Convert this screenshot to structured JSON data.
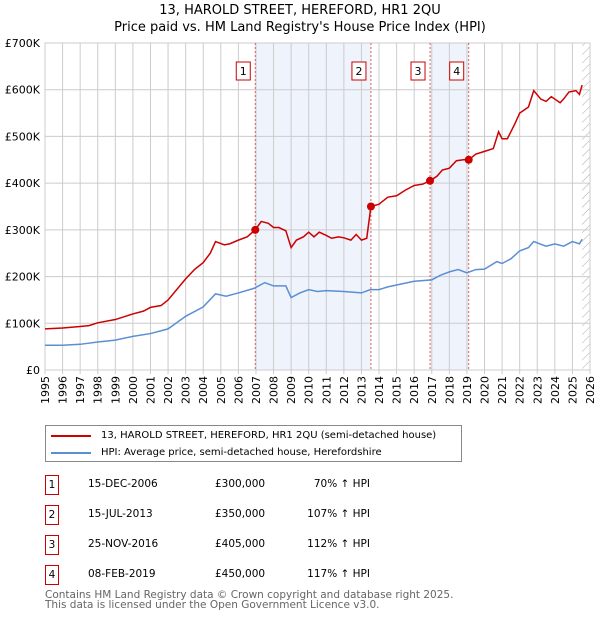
{
  "chart_data": {
    "type": "line",
    "title": "13, HAROLD STREET, HEREFORD, HR1 2QU",
    "subtitle": "Price paid vs. HM Land Registry's House Price Index (HPI)",
    "xlim": [
      1995,
      2026
    ],
    "ylim": [
      0,
      700000
    ],
    "x_ticks": [
      "1995",
      "1996",
      "1997",
      "1998",
      "1999",
      "2000",
      "2001",
      "2002",
      "2003",
      "2004",
      "2005",
      "2006",
      "2007",
      "2008",
      "2009",
      "2010",
      "2011",
      "2012",
      "2013",
      "2014",
      "2015",
      "2016",
      "2017",
      "2018",
      "2019",
      "2020",
      "2021",
      "2022",
      "2023",
      "2024",
      "2025",
      "2026"
    ],
    "y_ticks": [
      {
        "v": 0,
        "label": "£0"
      },
      {
        "v": 100000,
        "label": "£100K"
      },
      {
        "v": 200000,
        "label": "£200K"
      },
      {
        "v": 300000,
        "label": "£300K"
      },
      {
        "v": 400000,
        "label": "£400K"
      },
      {
        "v": 500000,
        "label": "£500K"
      },
      {
        "v": 600000,
        "label": "£600K"
      },
      {
        "v": 700000,
        "label": "£700K"
      }
    ],
    "grid": true,
    "series": [
      {
        "name": "13, HAROLD STREET, HEREFORD, HR1 2QU (semi-detached house)",
        "color": "#cc0000",
        "x": [
          1995,
          1996,
          1997,
          1997.5,
          1998,
          1999,
          2000,
          2000.6,
          2001,
          2001.6,
          2002,
          2003,
          2003.5,
          2004,
          2004.4,
          2004.7,
          2005.2,
          2005.5,
          2006,
          2006.5,
          2006.96,
          2007.3,
          2007.7,
          2008,
          2008.3,
          2008.7,
          2009,
          2009.3,
          2009.7,
          2010,
          2010.3,
          2010.6,
          2011,
          2011.3,
          2011.7,
          2012,
          2012.4,
          2012.7,
          2013,
          2013.3,
          2013.54,
          2014,
          2014.5,
          2015,
          2015.5,
          2016,
          2016.5,
          2016.9,
          2017.3,
          2017.6,
          2018,
          2018.4,
          2018.8,
          2019.1,
          2019.5,
          2020,
          2020.5,
          2020.8,
          2021,
          2021.3,
          2021.7,
          2022,
          2022.5,
          2022.8,
          2023.2,
          2023.5,
          2023.8,
          2024,
          2024.3,
          2024.5,
          2024.8,
          2025.2,
          2025.4,
          2025.55
        ],
        "values": [
          88000,
          90000,
          93000,
          95000,
          101000,
          108000,
          120000,
          126000,
          134000,
          138000,
          150000,
          195000,
          215000,
          230000,
          250000,
          275000,
          268000,
          270000,
          278000,
          285000,
          300000,
          318000,
          314000,
          305000,
          305000,
          298000,
          262000,
          278000,
          285000,
          295000,
          285000,
          295000,
          288000,
          282000,
          285000,
          283000,
          278000,
          290000,
          278000,
          282000,
          350000,
          355000,
          370000,
          373000,
          385000,
          395000,
          398000,
          405000,
          415000,
          428000,
          432000,
          448000,
          450000,
          450000,
          462000,
          468000,
          474000,
          510000,
          495000,
          495000,
          525000,
          550000,
          563000,
          598000,
          580000,
          575000,
          585000,
          580000,
          572000,
          580000,
          595000,
          598000,
          590000,
          610000
        ]
      },
      {
        "name": "HPI: Average price, semi-detached house, Herefordshire",
        "color": "#5b8fd4",
        "x": [
          1995,
          1996,
          1997,
          1998,
          1999,
          2000,
          2001,
          2002,
          2003,
          2004,
          2004.7,
          2005.3,
          2006,
          2006.9,
          2007.5,
          2008,
          2008.7,
          2009,
          2009.5,
          2010,
          2010.5,
          2011,
          2012,
          2013,
          2013.5,
          2014,
          2014.5,
          2015,
          2016,
          2017,
          2017.5,
          2018,
          2018.5,
          2019,
          2019.5,
          2020,
          2020.7,
          2021,
          2021.5,
          2022,
          2022.5,
          2022.8,
          2023.5,
          2024,
          2024.5,
          2025,
          2025.4,
          2025.55
        ],
        "values": [
          53000,
          53000,
          55000,
          60000,
          64000,
          72000,
          78000,
          88000,
          115000,
          135000,
          163000,
          158000,
          165000,
          175000,
          187000,
          180000,
          180000,
          155000,
          165000,
          172000,
          168000,
          170000,
          168000,
          165000,
          172000,
          172000,
          178000,
          182000,
          190000,
          193000,
          203000,
          210000,
          215000,
          208000,
          215000,
          216000,
          232000,
          228000,
          238000,
          255000,
          262000,
          275000,
          265000,
          270000,
          265000,
          275000,
          270000,
          280000
        ]
      }
    ],
    "sales": [
      {
        "num": "1",
        "x": 2006.96,
        "value": 300000,
        "date": "15-DEC-2006",
        "price": "£300,000",
        "hpi": "70% ↑ HPI"
      },
      {
        "num": "2",
        "x": 2013.54,
        "value": 350000,
        "date": "15-JUL-2013",
        "price": "£350,000",
        "hpi": "107% ↑ HPI"
      },
      {
        "num": "3",
        "x": 2016.9,
        "value": 405000,
        "date": "25-NOV-2016",
        "price": "£405,000",
        "hpi": "112% ↑ HPI"
      },
      {
        "num": "4",
        "x": 2019.1,
        "value": 450000,
        "date": "08-FEB-2019",
        "price": "£450,000",
        "hpi": "117% ↑ HPI"
      }
    ],
    "shaded_ranges": [
      [
        2006.96,
        2013.54
      ],
      [
        2016.9,
        2019.1
      ]
    ],
    "forecast_from": 2025.55,
    "legend_placement": "bottom"
  },
  "footer": [
    "Contains HM Land Registry data © Crown copyright and database right 2025.",
    "This data is licensed under the Open Government Licence v3.0."
  ]
}
